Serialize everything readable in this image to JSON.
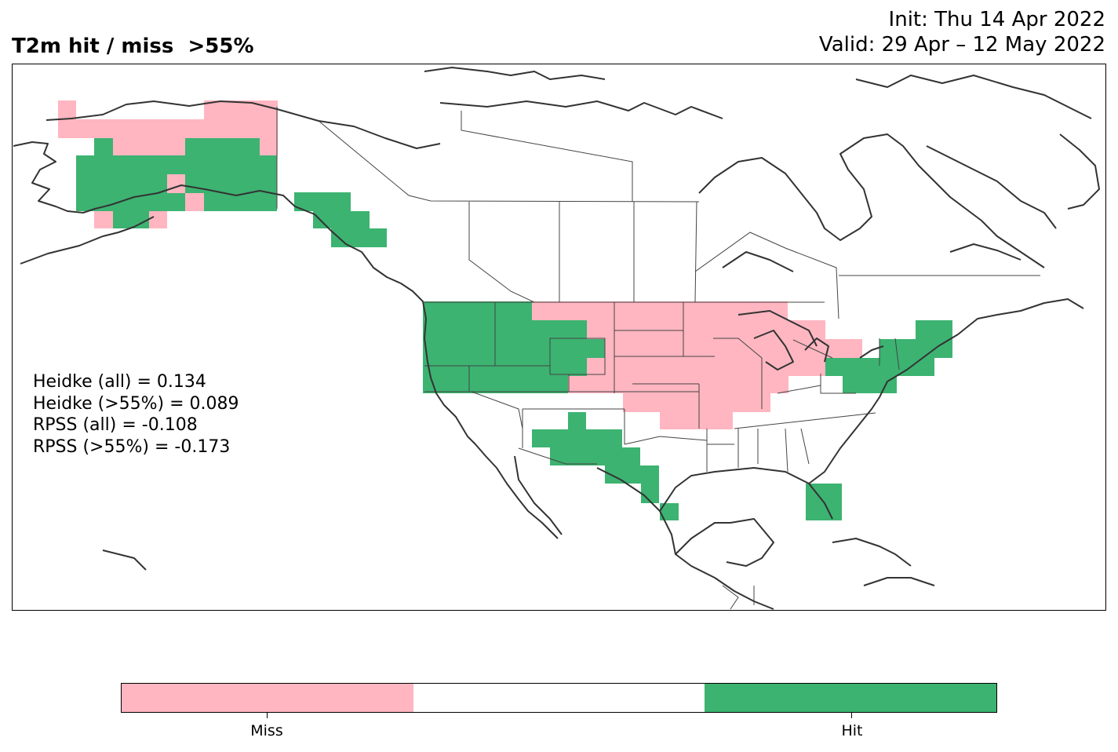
{
  "header": {
    "title": "T2m hit / miss  >55%",
    "init": "Init: Thu 14 Apr 2022",
    "valid": "Valid: 29 Apr – 12 May 2022"
  },
  "scores": [
    "Heidke (all) = 0.134",
    "Heidke (>55%) = 0.089",
    "RPSS (all) = -0.108",
    "RPSS (>55%) = -0.173"
  ],
  "colors": {
    "miss": "#ffb6c1",
    "neutral": "#ffffff",
    "hit": "#3cb371",
    "coast": "#333333",
    "border": "#444444"
  },
  "colorbar": {
    "labels": [
      "Miss",
      "Hit"
    ]
  }
}
